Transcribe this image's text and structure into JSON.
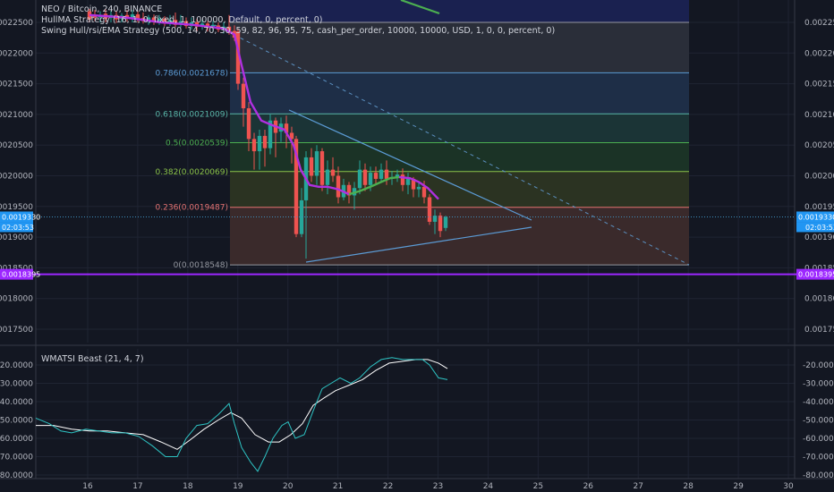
{
  "title": "NEO / Bitcoin, 240, BINANCE",
  "studies": [
    "HullMA Strategy (16, 1, 0, fixed, 1, 100000, Default, 0, percent, 0)",
    "Swing Hull/rsi/EMA Strategy (500, 14, 70, 30, 59, 82, 96, 95, 75, cash_per_order, 10000, 10000, USD, 1, 0, 0, percent, 0)"
  ],
  "oscillator_title": "WMATSI Beast (21, 4, 7)",
  "price_axis": {
    "ticks": [
      "0.0022500",
      "0.0022000",
      "0.0021500",
      "0.0021000",
      "0.0020500",
      "0.0020000",
      "0.0019500",
      "0.0019000",
      "0.0018500",
      "0.0018000",
      "0.0017500"
    ],
    "current_price": "0.0019330",
    "countdown": "02:03:53",
    "horizontal_line": "0.0018395"
  },
  "osc_axis": {
    "ticks": [
      "-20.0000",
      "-30.0000",
      "-40.0000",
      "-50.0000",
      "-60.0000",
      "-70.0000",
      "-80.0000"
    ]
  },
  "time_axis": {
    "ticks": [
      "16",
      "17",
      "18",
      "19",
      "20",
      "21",
      "22",
      "23",
      "24",
      "25",
      "26",
      "27",
      "28",
      "29",
      "30"
    ]
  },
  "fib_levels": [
    {
      "label": "0.786(0.0021678)",
      "color": "#5b9bd5",
      "fill": "#1e2e47"
    },
    {
      "label": "0.618(0.0021009)",
      "color": "#59b6a8",
      "fill": "#1b3436"
    },
    {
      "label": "0.5(0.0020539)",
      "color": "#4caf50",
      "fill": "#1b3326"
    },
    {
      "label": "0.382(0.0020069)",
      "color": "#8bc34a",
      "fill": "#2b3322"
    },
    {
      "label": "0.236(0.0019487)",
      "color": "#e57373",
      "fill": "#3a2a2b"
    },
    {
      "label": "0(0.0018548)",
      "color": "#9598a1",
      "fill": "#3a1d24"
    }
  ],
  "colors": {
    "background": "#131722",
    "up_candle": "#26a69a",
    "down_candle": "#ef5350",
    "hull_down": "#b030e0",
    "hull_up": "#4caf50",
    "purple_line": "#9c27ff",
    "oscillator_fast": "#2ec4c4",
    "oscillator_slow": "#ffffff"
  }
}
